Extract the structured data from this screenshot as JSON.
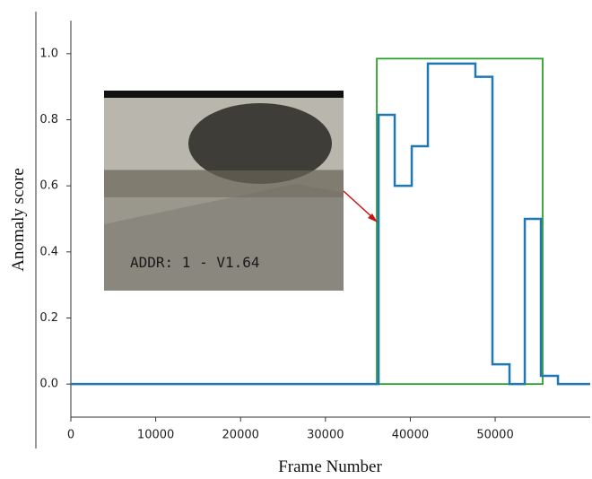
{
  "chart_data": {
    "type": "line",
    "x_label": "Frame Number",
    "y_label": "Anomaly score",
    "xlim": [
      0,
      61200
    ],
    "ylim": [
      -0.1,
      1.1
    ],
    "xticks": [
      0,
      10000,
      20000,
      30000,
      40000,
      50000
    ],
    "yticks": [
      {
        "value": 0,
        "label": "0.0"
      },
      0.2,
      0.4,
      0.6,
      0.8,
      {
        "value": 1,
        "label": "1.0"
      }
    ],
    "series": [
      {
        "color": "#1f77b4",
        "x": [
          0,
          36260,
          36260,
          38160,
          38160,
          40170,
          40170,
          42070,
          42070,
          47670,
          47670,
          49680,
          49680,
          51690,
          51690,
          53490,
          53490,
          55390,
          55390,
          57400,
          57400,
          61200
        ],
        "values": [
          0,
          0,
          0.815,
          0.815,
          0.6,
          0.6,
          0.72,
          0.72,
          0.97,
          0.97,
          0.93,
          0.93,
          0.06,
          0.06,
          0,
          0,
          0.5,
          0.5,
          0.025,
          0.025,
          0,
          0
        ]
      }
    ],
    "ground_truth": {
      "color": "#2ca02c",
      "x": [
        36050,
        55600
      ],
      "y": [
        0,
        0.985
      ]
    },
    "inset_caption": "ADDR: 1  - V1.64"
  }
}
